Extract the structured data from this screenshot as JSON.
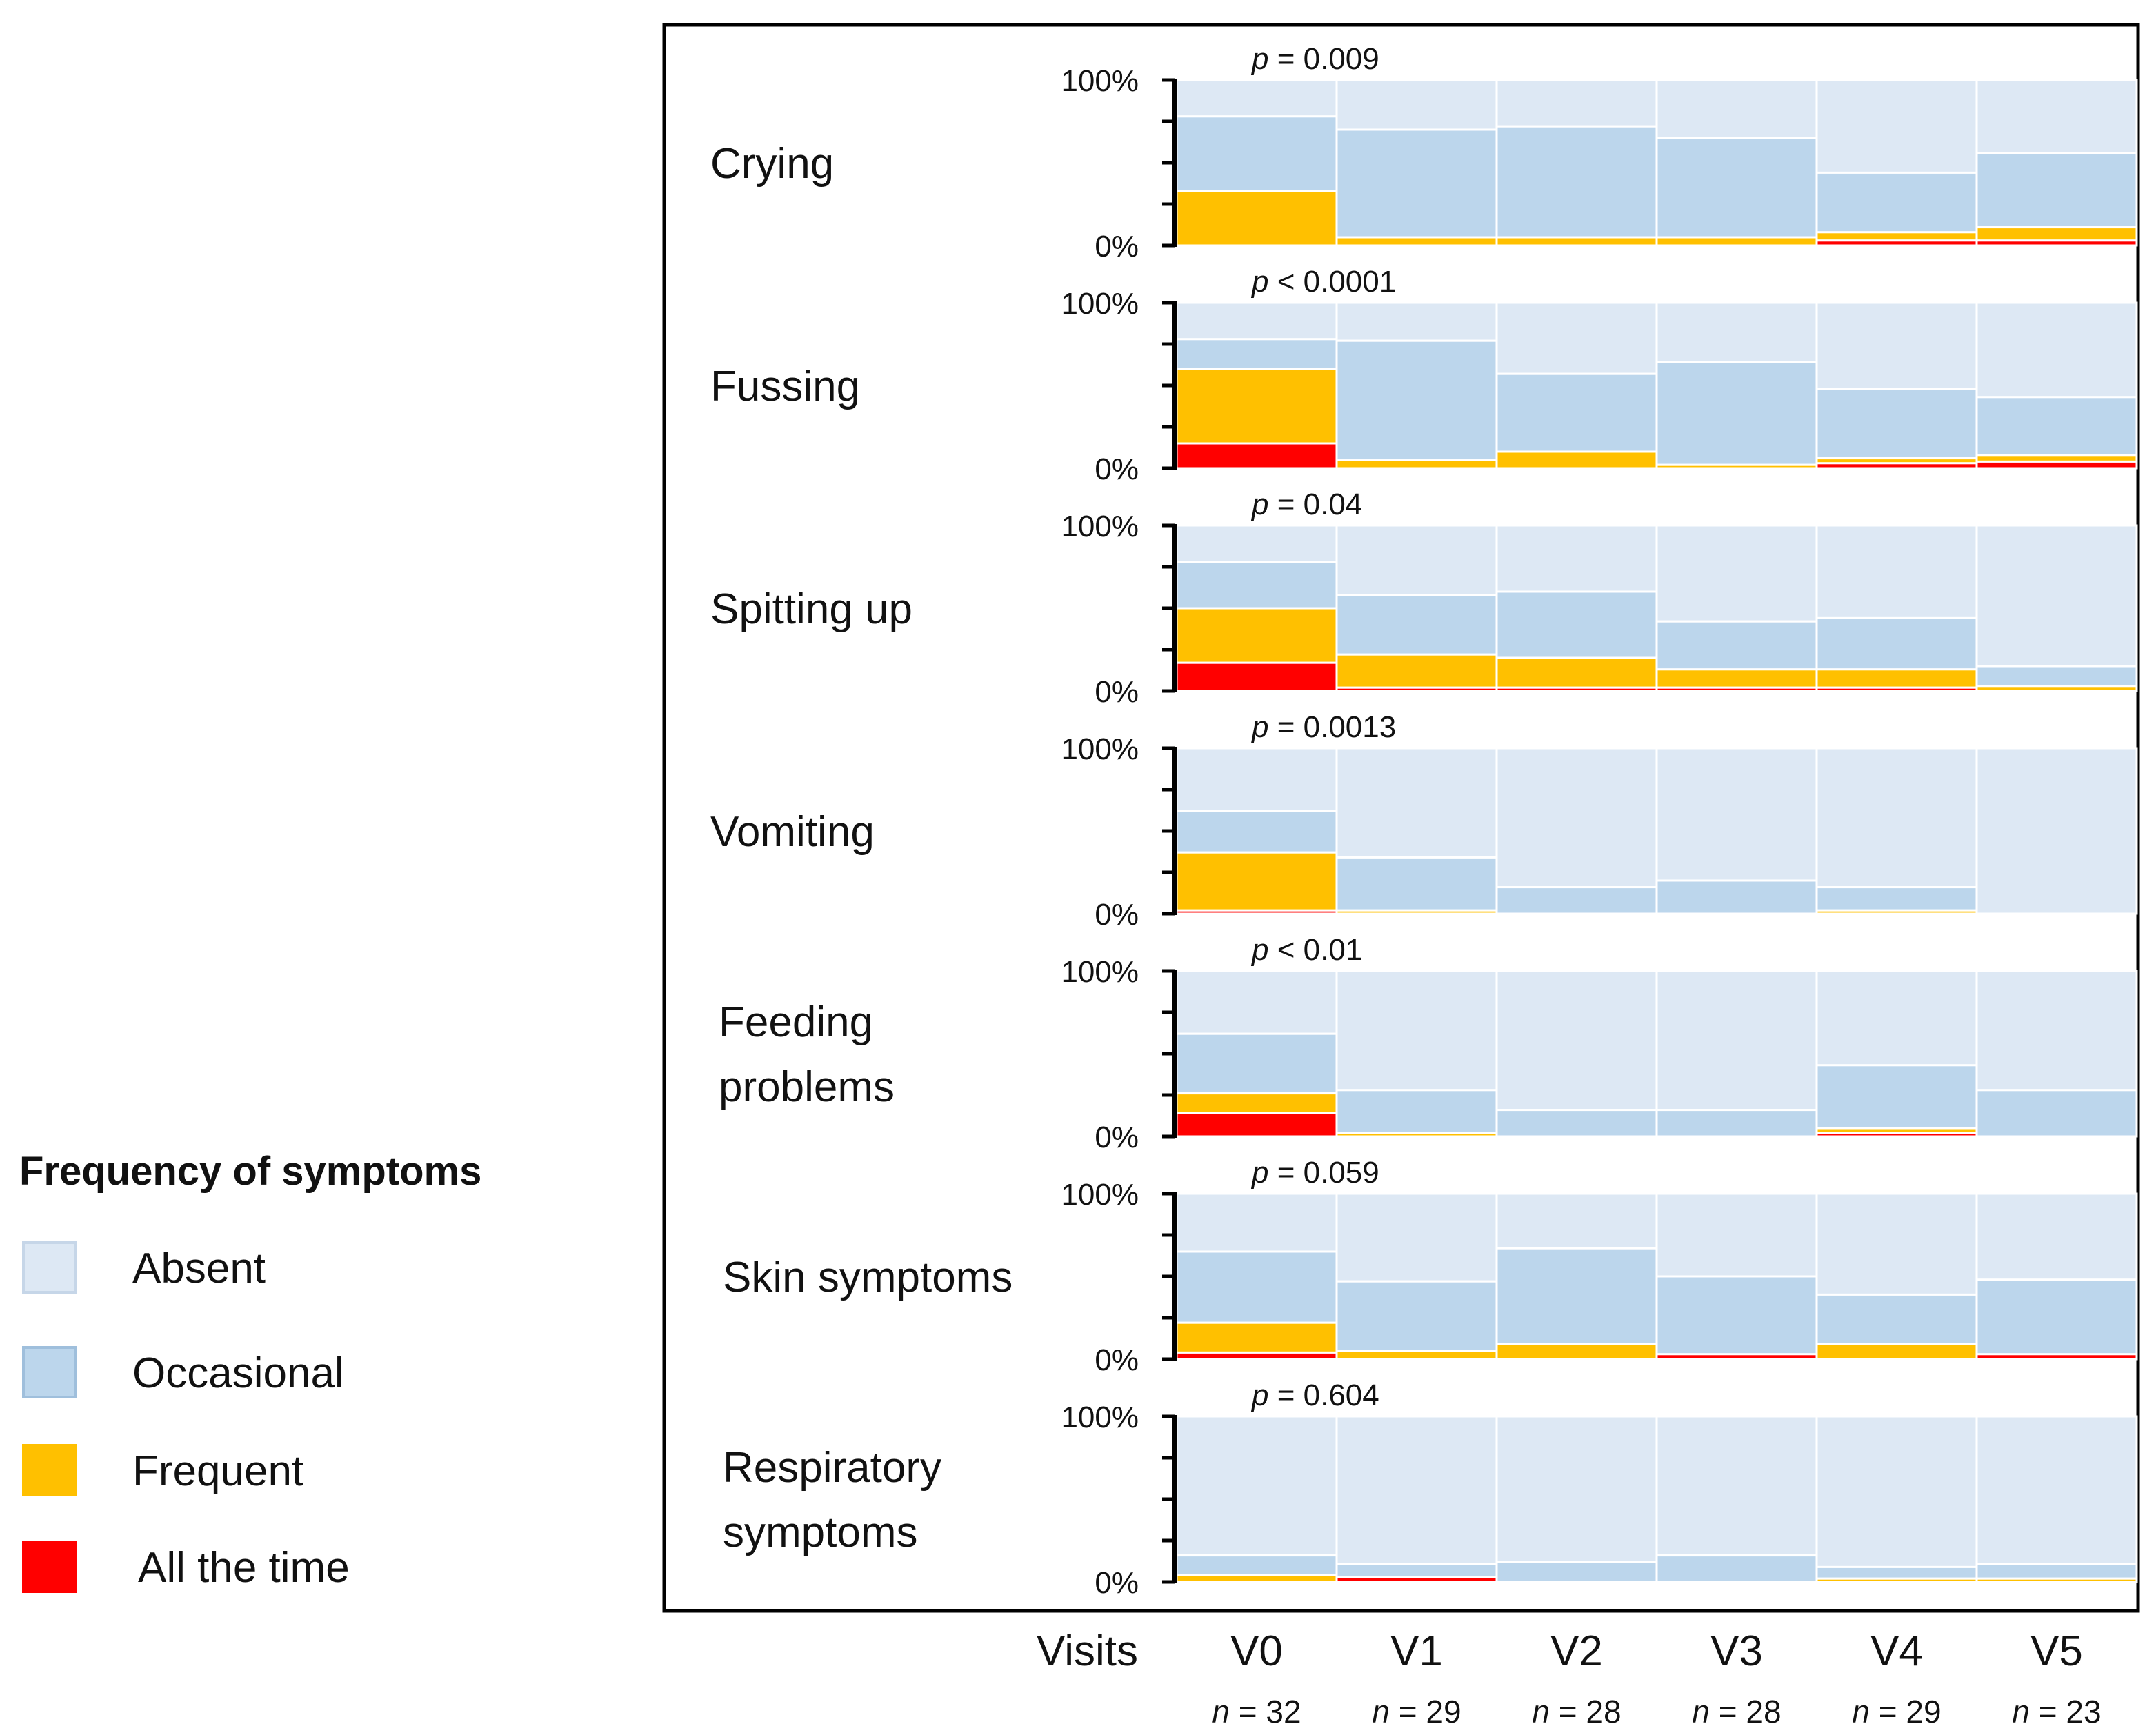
{
  "chart_data": {
    "type": "stacked-bar",
    "y_tick_labels": [
      "100%",
      "0%"
    ],
    "ylim": [
      0,
      100
    ],
    "visits_label": "Visits",
    "visits": [
      {
        "label": "V0",
        "n": "32"
      },
      {
        "label": "V1",
        "n": "29"
      },
      {
        "label": "V2",
        "n": "28"
      },
      {
        "label": "V3",
        "n": "28"
      },
      {
        "label": "V4",
        "n": "29"
      },
      {
        "label": "V5",
        "n": "23"
      }
    ],
    "n_prefix": "n",
    "p_prefix": "p",
    "legend": {
      "title": "Frequency of symptoms",
      "items": [
        {
          "key": "absent",
          "label": "Absent",
          "color": "#dde8f4"
        },
        {
          "key": "occasional",
          "label": "Occasional",
          "color": "#bcd6ec"
        },
        {
          "key": "frequent",
          "label": "Frequent",
          "color": "#ffc000"
        },
        {
          "key": "all_the_time",
          "label": "All the time",
          "color": "#ff0000"
        }
      ]
    },
    "panels": [
      {
        "label": [
          "Crying"
        ],
        "p": "= 0.009",
        "bars": [
          {
            "all": 0,
            "frequent": 33,
            "occasional": 45
          },
          {
            "all": 0,
            "frequent": 5,
            "occasional": 65
          },
          {
            "all": 0,
            "frequent": 5,
            "occasional": 67
          },
          {
            "all": 0,
            "frequent": 5,
            "occasional": 60
          },
          {
            "all": 3,
            "frequent": 5,
            "occasional": 36
          },
          {
            "all": 3,
            "frequent": 8,
            "occasional": 45
          }
        ]
      },
      {
        "label": [
          "Fussing"
        ],
        "p": "< 0.0001",
        "bars": [
          {
            "all": 15,
            "frequent": 45,
            "occasional": 18
          },
          {
            "all": 0,
            "frequent": 5,
            "occasional": 72
          },
          {
            "all": 0,
            "frequent": 10,
            "occasional": 47
          },
          {
            "all": 0,
            "frequent": 2,
            "occasional": 62
          },
          {
            "all": 3,
            "frequent": 3,
            "occasional": 42
          },
          {
            "all": 4,
            "frequent": 4,
            "occasional": 35
          }
        ]
      },
      {
        "label": [
          "Spitting up"
        ],
        "p": "= 0.04",
        "bars": [
          {
            "all": 17,
            "frequent": 33,
            "occasional": 28
          },
          {
            "all": 2,
            "frequent": 20,
            "occasional": 36
          },
          {
            "all": 2,
            "frequent": 18,
            "occasional": 40
          },
          {
            "all": 2,
            "frequent": 11,
            "occasional": 29
          },
          {
            "all": 2,
            "frequent": 11,
            "occasional": 31
          },
          {
            "all": 0,
            "frequent": 3,
            "occasional": 12
          }
        ]
      },
      {
        "label": [
          "Vomiting"
        ],
        "p": "= 0.0013",
        "bars": [
          {
            "all": 2,
            "frequent": 35,
            "occasional": 25
          },
          {
            "all": 0,
            "frequent": 2,
            "occasional": 32
          },
          {
            "all": 0,
            "frequent": 0,
            "occasional": 16
          },
          {
            "all": 0,
            "frequent": 0,
            "occasional": 20
          },
          {
            "all": 0,
            "frequent": 2,
            "occasional": 14
          },
          {
            "all": 0,
            "frequent": 0,
            "occasional": 0
          }
        ]
      },
      {
        "label": [
          "Feeding",
          "problems"
        ],
        "p": "< 0.01",
        "bars": [
          {
            "all": 14,
            "frequent": 12,
            "occasional": 36
          },
          {
            "all": 0,
            "frequent": 2,
            "occasional": 26
          },
          {
            "all": 0,
            "frequent": 0,
            "occasional": 16
          },
          {
            "all": 0,
            "frequent": 0,
            "occasional": 16
          },
          {
            "all": 2,
            "frequent": 3,
            "occasional": 38
          },
          {
            "all": 0,
            "frequent": 0,
            "occasional": 28
          }
        ]
      },
      {
        "label": [
          "Skin symptoms"
        ],
        "p": "= 0.059",
        "bars": [
          {
            "all": 4,
            "frequent": 18,
            "occasional": 43
          },
          {
            "all": 0,
            "frequent": 5,
            "occasional": 42
          },
          {
            "all": 0,
            "frequent": 9,
            "occasional": 58
          },
          {
            "all": 3,
            "frequent": 0,
            "occasional": 47
          },
          {
            "all": 0,
            "frequent": 9,
            "occasional": 30
          },
          {
            "all": 3,
            "frequent": 0,
            "occasional": 45
          }
        ]
      },
      {
        "label": [
          "Respiratory",
          "symptoms"
        ],
        "p": "= 0.604",
        "bars": [
          {
            "all": 0,
            "frequent": 4,
            "occasional": 12
          },
          {
            "all": 3,
            "frequent": 0,
            "occasional": 8
          },
          {
            "all": 0,
            "frequent": 0,
            "occasional": 12
          },
          {
            "all": 0,
            "frequent": 0,
            "occasional": 16
          },
          {
            "all": 0,
            "frequent": 2,
            "occasional": 7
          },
          {
            "all": 0,
            "frequent": 2,
            "occasional": 9
          }
        ]
      }
    ]
  }
}
